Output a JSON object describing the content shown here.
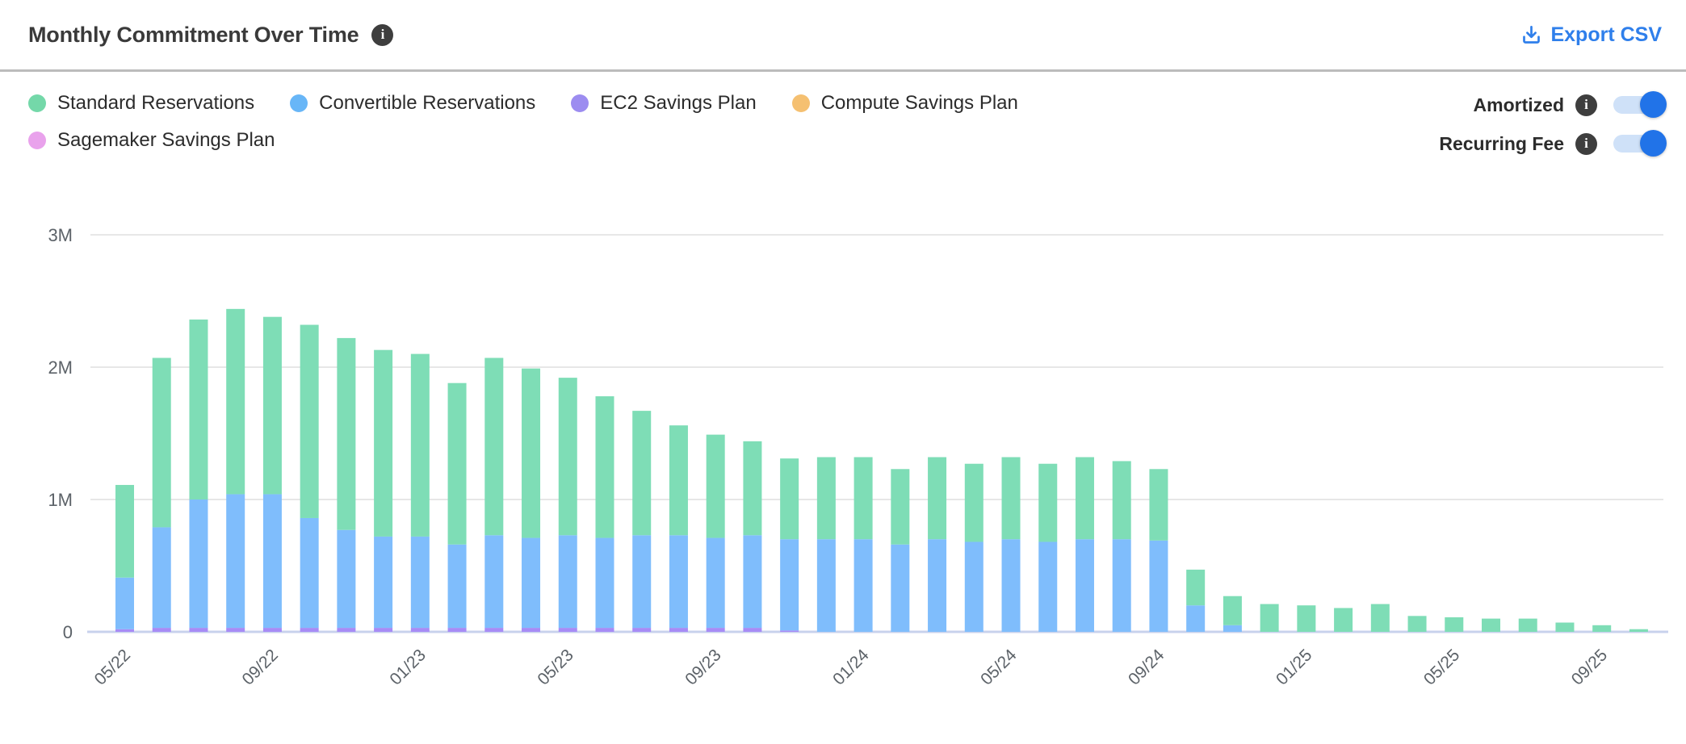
{
  "header": {
    "title": "Monthly Commitment Over Time",
    "title_info_icon": "i",
    "export_label": "Export CSV"
  },
  "legend": {
    "items": [
      {
        "label": "Standard Reservations",
        "color": "#74d8a9"
      },
      {
        "label": "Convertible Reservations",
        "color": "#68b6f7"
      },
      {
        "label": "EC2 Savings Plan",
        "color": "#9c8cf0"
      },
      {
        "label": "Compute Savings Plan",
        "color": "#f5c071"
      },
      {
        "label": "Sagemaker Savings Plan",
        "color": "#e9a2ec"
      }
    ]
  },
  "toggles": [
    {
      "label": "Amortized",
      "info_icon": "i",
      "state": "on"
    },
    {
      "label": "Recurring Fee",
      "info_icon": "i",
      "state": "on"
    }
  ],
  "colors": {
    "accent_blue": "#2f7feb",
    "toggle_knob": "#2173e8",
    "toggle_track": "#cfe1f8",
    "gridline": "#e7e7e7",
    "baseline": "#c8d2ec",
    "tick_text": "#5c6268",
    "divider": "#bcbcbc"
  },
  "chart_data": {
    "type": "bar",
    "stacked": true,
    "title": "Monthly Commitment Over Time",
    "unit": "M (millions USD)",
    "ylim": [
      0,
      3
    ],
    "y_tick_labels": [
      "0",
      "1M",
      "2M",
      "3M"
    ],
    "y_tick_values": [
      0,
      1,
      2,
      3
    ],
    "x_tick_every": 4,
    "grid": "horizontal",
    "legend_position": "top-left",
    "categories": [
      "05/22",
      "06/22",
      "07/22",
      "08/22",
      "09/22",
      "10/22",
      "11/22",
      "12/22",
      "01/23",
      "02/23",
      "03/23",
      "04/23",
      "05/23",
      "06/23",
      "07/23",
      "08/23",
      "09/23",
      "10/23",
      "11/23",
      "12/23",
      "01/24",
      "02/24",
      "03/24",
      "04/24",
      "05/24",
      "06/24",
      "07/24",
      "08/24",
      "09/24",
      "10/24",
      "11/24",
      "12/24",
      "01/25",
      "02/25",
      "03/25",
      "04/25",
      "05/25",
      "06/25",
      "07/25",
      "08/25",
      "09/25",
      "10/25"
    ],
    "visible_x_tick_labels": [
      "05/22",
      "09/22",
      "01/23",
      "05/23",
      "09/23",
      "01/24",
      "05/24",
      "09/24",
      "01/25",
      "05/25",
      "09/25"
    ],
    "series_bottom_to_top": [
      {
        "name": "EC2 Savings Plan",
        "color": "#a78bf6",
        "values": [
          0.02,
          0.03,
          0.03,
          0.03,
          0.03,
          0.03,
          0.03,
          0.03,
          0.03,
          0.03,
          0.03,
          0.03,
          0.03,
          0.03,
          0.03,
          0.03,
          0.03,
          0.03,
          0.01,
          0,
          0,
          0,
          0,
          0,
          0,
          0,
          0,
          0,
          0,
          0,
          0,
          0,
          0,
          0,
          0,
          0,
          0,
          0,
          0,
          0,
          0,
          0
        ]
      },
      {
        "name": "Convertible Reservations",
        "color": "#7fbdfc",
        "values": [
          0.39,
          0.76,
          0.97,
          1.01,
          1.01,
          0.83,
          0.74,
          0.69,
          0.69,
          0.63,
          0.7,
          0.68,
          0.7,
          0.68,
          0.7,
          0.7,
          0.68,
          0.7,
          0.69,
          0.7,
          0.7,
          0.66,
          0.7,
          0.68,
          0.7,
          0.68,
          0.7,
          0.7,
          0.69,
          0.2,
          0.05,
          0,
          0,
          0,
          0,
          0,
          0,
          0,
          0,
          0,
          0,
          0
        ]
      },
      {
        "name": "Standard Reservations",
        "color": "#7eddb6",
        "values": [
          0.7,
          1.28,
          1.36,
          1.4,
          1.34,
          1.46,
          1.45,
          1.41,
          1.38,
          1.22,
          1.34,
          1.28,
          1.19,
          1.07,
          0.94,
          0.83,
          0.78,
          0.71,
          0.61,
          0.62,
          0.62,
          0.57,
          0.62,
          0.59,
          0.62,
          0.59,
          0.62,
          0.59,
          0.54,
          0.27,
          0.22,
          0.21,
          0.2,
          0.18,
          0.21,
          0.12,
          0.11,
          0.1,
          0.1,
          0.07,
          0.05,
          0.02
        ]
      },
      {
        "name": "Compute Savings Plan",
        "color": "#f5c071",
        "values": [
          0,
          0,
          0,
          0,
          0,
          0,
          0,
          0,
          0,
          0,
          0,
          0,
          0,
          0,
          0,
          0,
          0,
          0,
          0,
          0,
          0,
          0,
          0,
          0,
          0,
          0,
          0,
          0,
          0,
          0,
          0,
          0,
          0,
          0,
          0,
          0,
          0,
          0,
          0,
          0,
          0,
          0
        ]
      },
      {
        "name": "Sagemaker Savings Plan",
        "color": "#e9a2ec",
        "values": [
          0,
          0,
          0,
          0,
          0,
          0,
          0,
          0,
          0,
          0,
          0,
          0,
          0,
          0,
          0,
          0,
          0,
          0,
          0,
          0,
          0,
          0,
          0,
          0,
          0,
          0,
          0,
          0,
          0,
          0,
          0,
          0,
          0,
          0,
          0,
          0,
          0,
          0,
          0,
          0,
          0,
          0
        ]
      }
    ]
  }
}
